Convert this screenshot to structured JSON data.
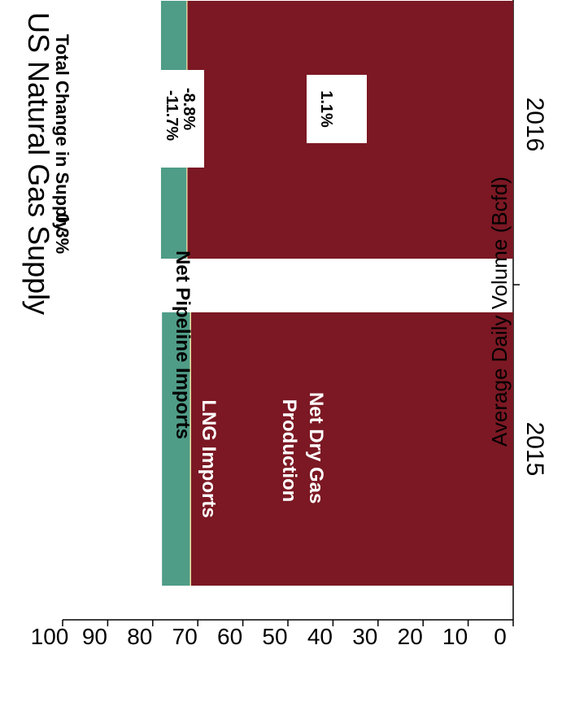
{
  "chart_data": {
    "type": "bar",
    "stacked": true,
    "orientation": "horizontal",
    "title": "US Natural Gas Supply",
    "subtitle": "Total Change in Supply",
    "subtitle_value": "0.3%",
    "ylabel": "Average Daily Volume (Bcfd)",
    "ylim": [
      0,
      100
    ],
    "ticks": [
      "0",
      "10",
      "20",
      "30",
      "40",
      "50",
      "60",
      "70",
      "80",
      "90",
      "100"
    ],
    "categories": [
      "2015",
      "2016"
    ],
    "series": [
      {
        "name": "Net Dry Gas Production",
        "values": [
          71.5,
          72.3
        ],
        "color": "#7b1823",
        "label_color": "#ffffff"
      },
      {
        "name": "LNG Imports",
        "values": [
          0.25,
          0.22
        ],
        "color": "#f0e7a0",
        "label_color": "#ffffff"
      },
      {
        "name": "Net Pipeline Imports",
        "values": [
          6.2,
          5.65
        ],
        "color": "#4f9c87",
        "label_color": "#000000"
      }
    ],
    "annotations": [
      "1.1%",
      "-11.7%",
      "-8.8%"
    ]
  }
}
